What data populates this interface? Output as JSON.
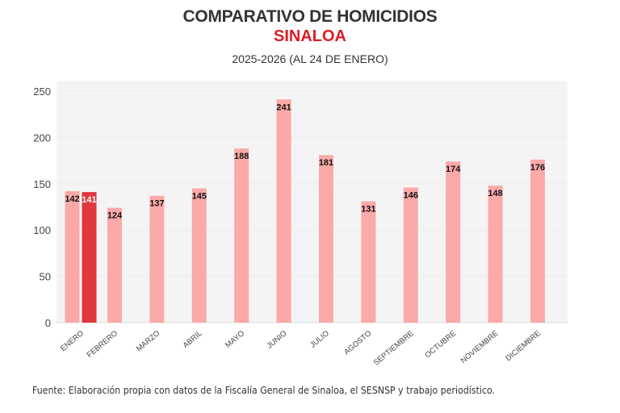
{
  "header": {
    "title": "COMPARATIVO DE HOMICIDIOS",
    "region": "SINALOA",
    "period": "2025-2026 (AL 24 DE ENERO)"
  },
  "footer": {
    "source": "Fuente: Elaboración propia con datos de la Fiscalía General de Sinaloa, el SESNSP y trabajo periodístico."
  },
  "colors": {
    "bar_2025": "#fca9a9",
    "bar_2026": "#e0383d",
    "plot_bg": "#f4f4f4",
    "grid": "#ebebeb",
    "title": "#333333",
    "accent": "#d81e24"
  },
  "chart_data": {
    "type": "bar",
    "title": "COMPARATIVO DE HOMICIDIOS",
    "subtitle": "SINALOA — 2025-2026 (AL 24 DE ENERO)",
    "xlabel": "",
    "ylabel": "",
    "ylim": [
      0,
      250
    ],
    "yticks": [
      0,
      50,
      100,
      150,
      200,
      250
    ],
    "grid": true,
    "legend": "none",
    "categories": [
      "ENERO",
      "FEBRERO",
      "MARZO",
      "ABRIL",
      "MAYO",
      "JUNIO",
      "JULIO",
      "AGOSTO",
      "SEPTIEMBRE",
      "OCTUBRE",
      "NOVIEMBRE",
      "DICIEMBRE"
    ],
    "series": [
      {
        "name": "2025",
        "values": [
          142,
          124,
          137,
          145,
          188,
          241,
          181,
          131,
          146,
          174,
          148,
          176
        ]
      },
      {
        "name": "2026",
        "values": [
          141,
          null,
          null,
          null,
          null,
          null,
          null,
          null,
          null,
          null,
          null,
          null
        ]
      }
    ]
  }
}
